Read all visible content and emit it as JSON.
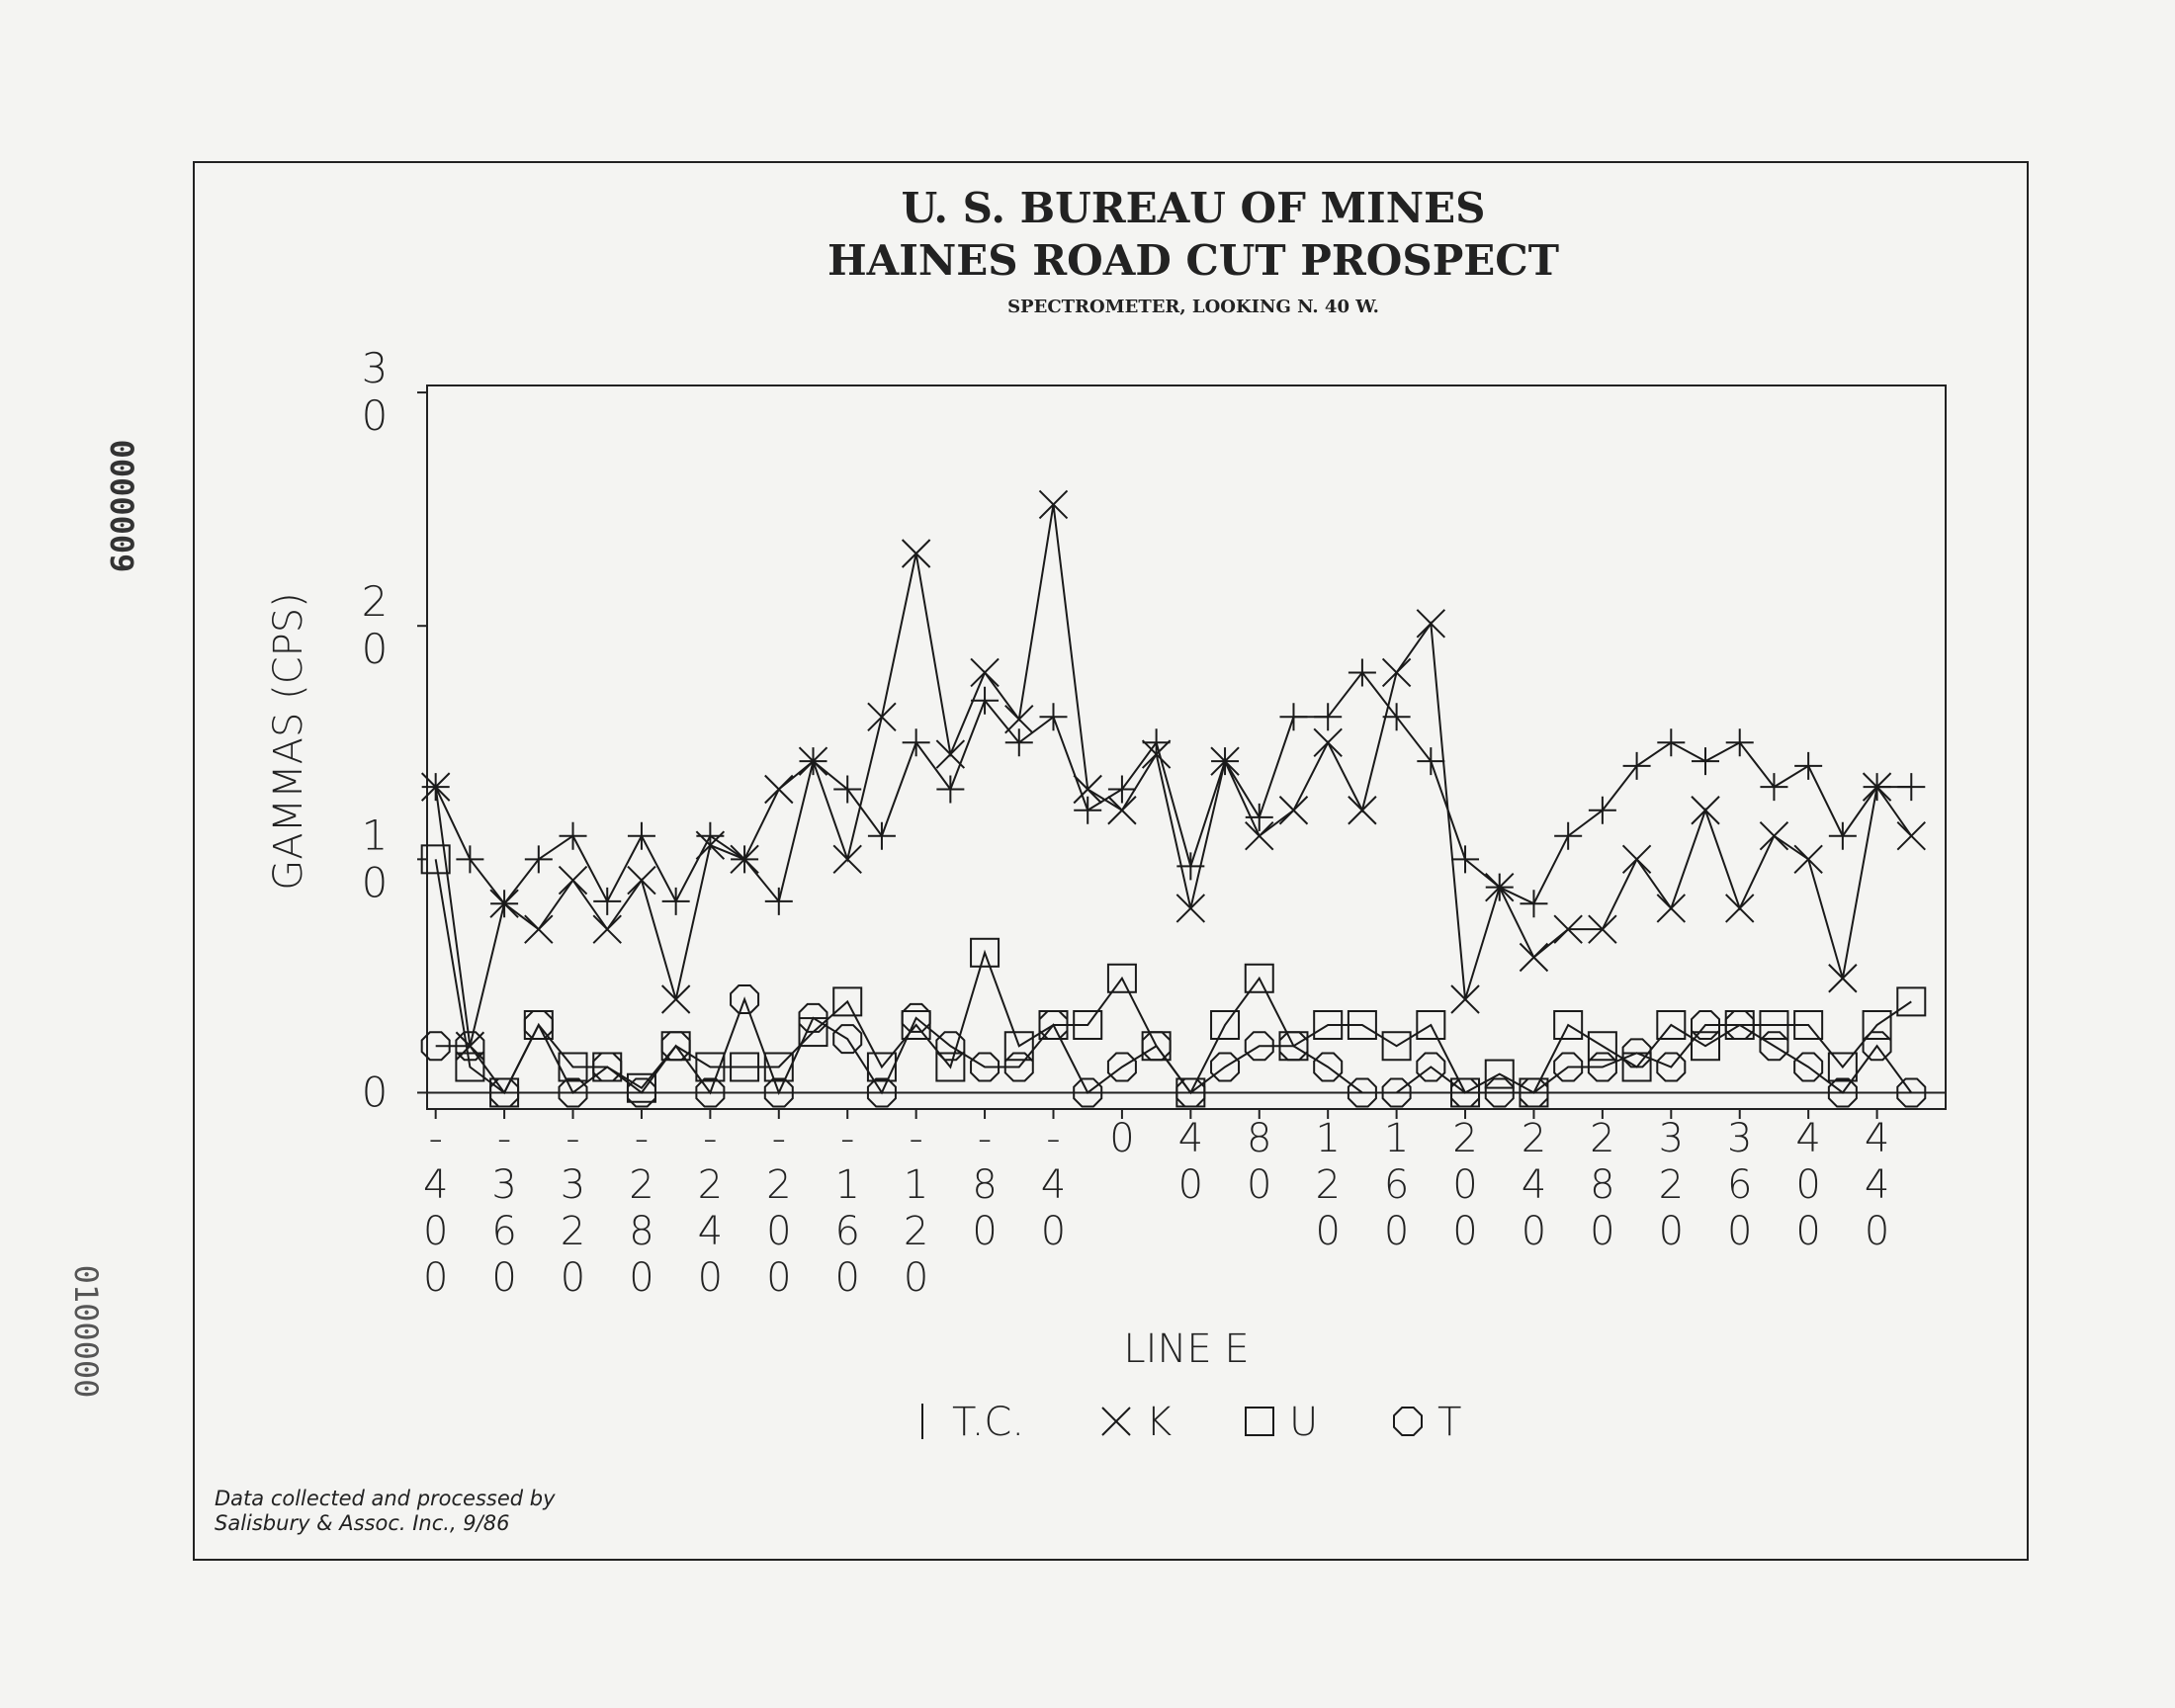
{
  "chart_data": {
    "type": "line",
    "title": "U. S. BUREAU OF MINES",
    "subtitle": "HAINES ROAD CUT PROSPECT",
    "caption": "SPECTROMETER, LOOKING N. 40 W.",
    "x_label": "LINE E",
    "y_label": "GAMMAS (CPS)",
    "note": [
      "Data collected and processed by",
      "Salisbury & Assoc. Inc., 9/86"
    ],
    "x": [
      -400,
      -380,
      -360,
      -340,
      -320,
      -300,
      -280,
      -260,
      -240,
      -220,
      -200,
      -180,
      -160,
      -140,
      -120,
      -100,
      -80,
      -60,
      -40,
      -20,
      0,
      20,
      40,
      60,
      80,
      100,
      120,
      140,
      160,
      180,
      200,
      220,
      240,
      260,
      280,
      300,
      320,
      340,
      360,
      380,
      400,
      420,
      440,
      460
    ],
    "xlim": [
      -405,
      480
    ],
    "xticks": [
      -400,
      -360,
      -320,
      -280,
      -240,
      -200,
      -160,
      -120,
      -80,
      -40,
      0,
      40,
      80,
      120,
      160,
      200,
      240,
      280,
      320,
      360,
      400,
      440
    ],
    "ylim": [
      -0.7,
      30.3
    ],
    "yticks": [
      0,
      10,
      20,
      30
    ],
    "series": [
      {
        "name": "T.C.",
        "marker": "plus",
        "color": "#1a1a1a",
        "values": [
          13.1,
          10,
          8.1,
          10,
          11,
          8.2,
          11,
          8.2,
          11,
          10,
          8.2,
          14.2,
          13,
          11,
          15,
          13,
          16.8,
          15,
          16.1,
          12.1,
          13,
          15,
          9.7,
          14.2,
          11.8,
          16.1,
          16.1,
          18,
          16.1,
          14.2,
          10,
          8.8,
          8.1,
          11,
          12.1,
          14,
          15,
          14.2,
          15,
          13.1,
          14,
          11,
          13.1,
          13.1
        ]
      },
      {
        "name": "K",
        "marker": "x",
        "color": "#1a1a1a",
        "values": [
          13.1,
          2,
          8.1,
          7,
          9.1,
          7,
          9.1,
          4,
          10.6,
          10,
          13,
          14.2,
          10,
          16.1,
          23.1,
          14.5,
          18,
          16,
          25.2,
          13,
          12.1,
          14.5,
          7.9,
          14.2,
          11,
          12.1,
          15,
          12.1,
          18,
          20.1,
          4,
          8.8,
          5.8,
          7,
          7,
          10,
          7.9,
          12.1,
          7.9,
          11,
          10,
          4.9,
          13.1,
          11
        ]
      },
      {
        "name": "U",
        "marker": "square",
        "color": "#1a1a1a",
        "values": [
          10,
          1.1,
          0,
          2.9,
          1.1,
          1.1,
          0.2,
          2,
          1.1,
          1.1,
          1.1,
          2.6,
          3.9,
          1.1,
          2.9,
          1.1,
          6,
          2,
          2.9,
          2.9,
          4.9,
          2,
          0,
          2.9,
          4.9,
          2,
          2.9,
          2.9,
          2,
          2.9,
          0,
          0.8,
          0,
          2.9,
          2,
          1.1,
          2.9,
          2,
          2.9,
          2.9,
          2.9,
          1.1,
          2.9,
          3.9
        ]
      },
      {
        "name": "T",
        "marker": "octagon",
        "color": "#1a1a1a",
        "values": [
          2,
          2,
          0,
          2.9,
          0,
          1.1,
          0,
          2,
          0,
          4,
          0,
          3.2,
          2.3,
          0,
          3.2,
          2,
          1.1,
          1.1,
          2.9,
          0,
          1.1,
          2,
          0,
          1.1,
          2,
          2,
          1.1,
          0,
          0,
          1.1,
          0,
          0,
          0,
          1.1,
          1.1,
          1.7,
          1.1,
          2.9,
          2.9,
          2,
          1.1,
          0,
          2,
          0
        ]
      }
    ]
  },
  "margin_codes": [
    "0000009",
    "0100000"
  ]
}
